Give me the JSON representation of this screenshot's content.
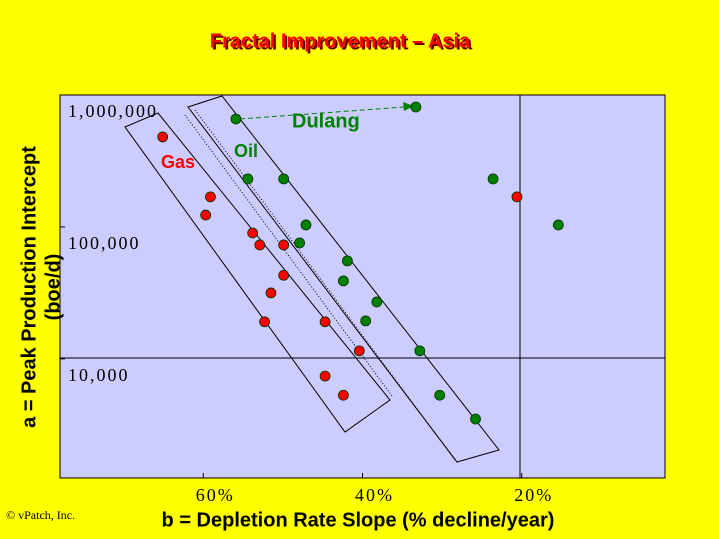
{
  "chart_data": {
    "type": "scatter",
    "title": "Fractal Improvement – Asia",
    "x_label": "b = Depletion Rate Slope (% decline/year)",
    "y_label": [
      "a = Peak Production Intercept",
      "(boe/d)"
    ],
    "credit": "© vPatch, Inc.",
    "annotations": [
      "Dulang"
    ],
    "xlim": [
      78,
      2
    ],
    "ylim": [
      1250,
      1000000
    ],
    "y_log": true,
    "xticks": [
      {
        "value": 60,
        "label": "60%"
      },
      {
        "value": 40,
        "label": "40%"
      },
      {
        "value": 20,
        "label": "20%"
      }
    ],
    "yticks": [
      {
        "value": 1000000,
        "label": "1,000,000"
      },
      {
        "value": 100000,
        "label": "100,000"
      },
      {
        "value": 10000,
        "label": "10,000"
      }
    ],
    "series": [
      {
        "name": "Gas",
        "color": "#ff0000",
        "x": [
          65.1,
          59.1,
          59.7,
          53.8,
          52.9,
          49.9,
          49.9,
          51.5,
          52.3,
          44.7,
          40.4,
          44.7,
          42.4,
          20.6
        ],
        "values": [
          481000,
          169000,
          123000,
          90000,
          73000,
          73000,
          43000,
          31600,
          19100,
          19100,
          11500,
          7400,
          5300,
          169000
        ]
      },
      {
        "name": "Oil",
        "color": "#008000",
        "x": [
          55.9,
          33.3,
          54.4,
          49.9,
          47.1,
          47.9,
          41.9,
          42.4,
          38.2,
          39.6,
          32.8,
          23.6,
          15.4,
          30.3,
          25.8
        ],
        "values": [
          658000,
          811000,
          231000,
          231000,
          103500,
          75600,
          55300,
          39000,
          27000,
          19400,
          11500,
          231000,
          103500,
          5300,
          3500
        ]
      }
    ]
  }
}
